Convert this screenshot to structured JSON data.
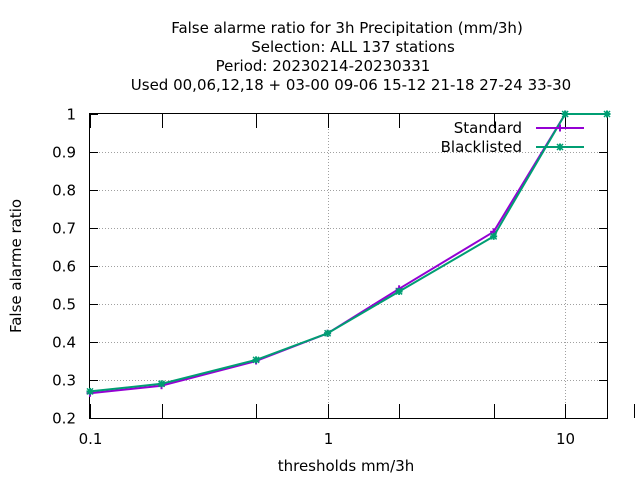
{
  "chart_data": {
    "type": "line",
    "title_lines": [
      "False alarme ratio  for 3h Precipitation (mm/3h)",
      "Selection: ALL    137 stations",
      "Period: 20230214-20230331",
      "Used  00,06,12,18 + 03-00 09-06 15-12 21-18 27-24 33-30"
    ],
    "xlabel": "thresholds mm/3h",
    "ylabel": "False alarme ratio",
    "x_scale": "log",
    "xlim": [
      0.1,
      15
    ],
    "ylim": [
      0.2,
      1.0
    ],
    "x_ticks": [
      {
        "value": 0.1,
        "label": "0.1"
      },
      {
        "value": 1,
        "label": "1"
      },
      {
        "value": 10,
        "label": "10"
      }
    ],
    "x_minor_ticks": [
      0.2,
      0.5,
      2,
      5,
      15
    ],
    "y_ticks": [
      {
        "value": 0.2,
        "label": "0.2"
      },
      {
        "value": 0.3,
        "label": "0.3"
      },
      {
        "value": 0.4,
        "label": "0.4"
      },
      {
        "value": 0.5,
        "label": "0.5"
      },
      {
        "value": 0.6,
        "label": "0.6"
      },
      {
        "value": 0.7,
        "label": "0.7"
      },
      {
        "value": 0.8,
        "label": "0.8"
      },
      {
        "value": 0.9,
        "label": "0.9"
      },
      {
        "value": 1.0,
        "label": "1"
      }
    ],
    "grid": true,
    "legend_position": "top-right",
    "x": [
      0.1,
      0.2,
      0.5,
      1,
      2,
      5,
      10,
      15
    ],
    "series": [
      {
        "name": "Standard",
        "color": "#9400d3",
        "marker": "plus",
        "values": [
          0.265,
          0.285,
          0.35,
          0.423,
          0.54,
          0.69,
          1.0,
          1.0
        ]
      },
      {
        "name": "Blacklisted",
        "color": "#009e73",
        "marker": "cross",
        "values": [
          0.27,
          0.29,
          0.353,
          0.423,
          0.533,
          0.678,
          1.0,
          1.0
        ]
      }
    ]
  }
}
